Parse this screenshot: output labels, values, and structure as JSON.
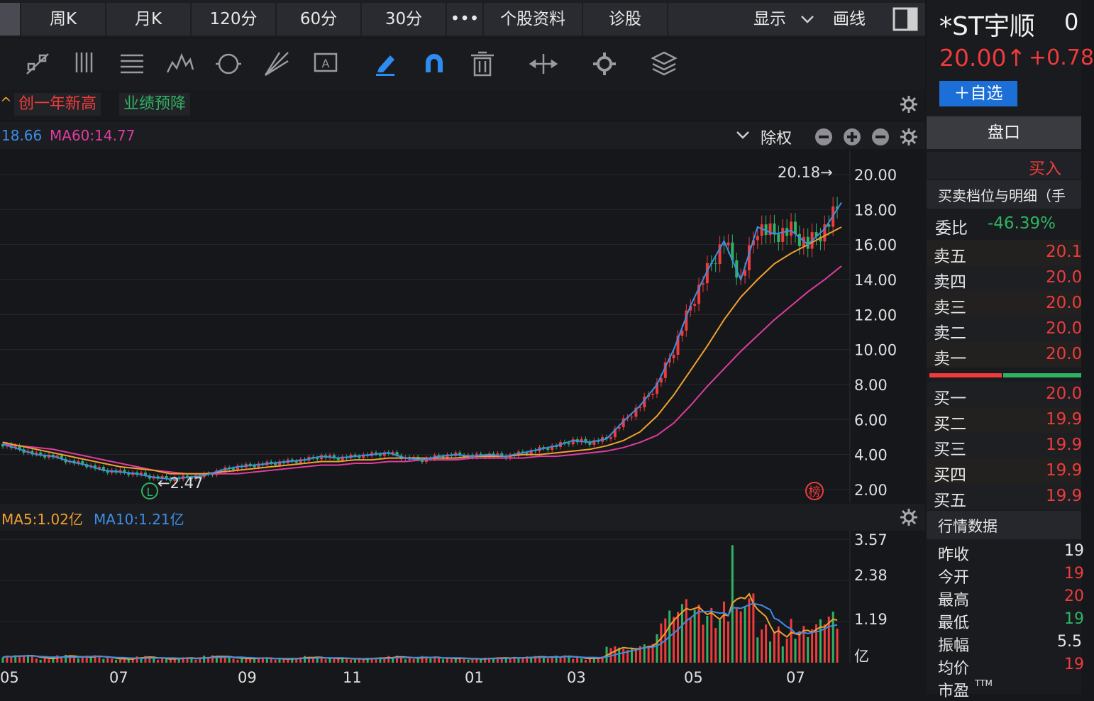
{
  "tabs": [
    {
      "label": ""
    },
    {
      "label": "周K"
    },
    {
      "label": "月K"
    },
    {
      "label": "120分"
    },
    {
      "label": "60分"
    },
    {
      "label": "30分"
    },
    {
      "label": "•••"
    },
    {
      "label": "个股资料"
    },
    {
      "label": "诊股"
    }
  ],
  "tabbar_right": {
    "display_label": "显示",
    "draw_label": "画线"
  },
  "tags": {
    "left_marker": "^",
    "new_high": "创一年新高",
    "profit_warning": "业绩预降"
  },
  "ma_legend": {
    "ma_partial": "18.66",
    "ma60": "MA60:14.77",
    "adjust": "除权"
  },
  "vol_legend": {
    "ma5": "MA5:1.02亿",
    "ma10": "MA10:1.21亿"
  },
  "price_axis": [
    "20.00",
    "18.00",
    "16.00",
    "14.00",
    "12.00",
    "10.00",
    "8.00",
    "6.00",
    "4.00",
    "2.00"
  ],
  "vol_axis": [
    "3.57",
    "2.38",
    "1.19",
    "亿"
  ],
  "x_axis": [
    "05",
    "07",
    "09",
    "11",
    "01",
    "03",
    "05",
    "07"
  ],
  "annotations": {
    "high": "20.18→",
    "low": "←2.47",
    "low_marker": "L",
    "rank_marker": "榜"
  },
  "stock": {
    "name": "*ST宇顺",
    "code_partial": "0",
    "price": "20.00↑",
    "change": "+0.78",
    "add_watch": "＋自选"
  },
  "panel": {
    "pankou": "盘口",
    "buy_tab": "买入",
    "section_title": "买卖档位与明细（手",
    "weibi_label": "委比",
    "weibi_value": "-46.39%",
    "asks": [
      {
        "label": "卖五",
        "price": "20.1"
      },
      {
        "label": "卖四",
        "price": "20.0"
      },
      {
        "label": "卖三",
        "price": "20.0"
      },
      {
        "label": "卖二",
        "price": "20.0"
      },
      {
        "label": "卖一",
        "price": "20.0"
      }
    ],
    "bids": [
      {
        "label": "买一",
        "price": "20.0"
      },
      {
        "label": "买二",
        "price": "19.9"
      },
      {
        "label": "买三",
        "price": "19.9"
      },
      {
        "label": "买四",
        "price": "19.9"
      },
      {
        "label": "买五",
        "price": "19.9"
      }
    ],
    "market_title": "行情数据",
    "market": [
      {
        "label": "昨收",
        "value": "19",
        "color": "#e6e6e6"
      },
      {
        "label": "今开",
        "value": "19",
        "color": "#ee3b3b"
      },
      {
        "label": "最高",
        "value": "20",
        "color": "#ee3b3b"
      },
      {
        "label": "最低",
        "value": "19",
        "color": "#2fb363"
      },
      {
        "label": "振幅",
        "value": "5.5",
        "color": "#e6e6e6"
      },
      {
        "label": "均价",
        "value": "19",
        "color": "#ee3b3b"
      },
      {
        "label": "市盈",
        "value": "TTM",
        "color": "#e6e6e6"
      }
    ]
  },
  "colors": {
    "up": "#ee3b3b",
    "down": "#2fb363",
    "ma5": "#3d8ee6",
    "ma10": "#f0a030",
    "ma60": "#e03ca0",
    "accent": "#1d6fd8"
  },
  "chart_data": {
    "type": "line",
    "title": "",
    "x_ticks": [
      "05",
      "07",
      "09",
      "11",
      "01",
      "03",
      "05",
      "07"
    ],
    "ylim": [
      2.0,
      20.0
    ],
    "series": [
      {
        "name": "",
        "values": [
          4.6,
          4.3,
          4.0,
          3.9,
          3.6,
          3.4,
          3.1,
          3.0,
          2.9,
          2.7,
          2.6,
          2.7,
          2.8,
          3.1,
          3.3,
          3.4,
          3.5,
          3.6,
          3.7,
          3.9,
          3.8,
          3.9,
          4.0,
          4.1,
          3.8,
          3.7,
          3.9,
          4.0,
          3.9,
          4.0,
          3.9,
          4.1,
          4.3,
          4.5,
          4.8,
          4.7,
          4.9,
          5.9,
          6.8,
          8.0,
          10.0,
          12.5,
          14.5,
          16.2,
          14.0,
          17.0,
          16.6,
          16.8,
          16.0,
          16.9,
          18.4
        ]
      },
      {
        "name": "",
        "values": [
          4.7,
          4.5,
          4.3,
          4.1,
          3.9,
          3.7,
          3.5,
          3.3,
          3.2,
          3.1,
          2.9,
          2.9,
          2.9,
          3.0,
          3.1,
          3.2,
          3.3,
          3.4,
          3.5,
          3.6,
          3.6,
          3.7,
          3.7,
          3.8,
          3.8,
          3.8,
          3.8,
          3.8,
          3.9,
          3.9,
          3.9,
          4.0,
          4.0,
          4.1,
          4.2,
          4.3,
          4.5,
          4.8,
          5.3,
          6.2,
          7.4,
          8.8,
          10.2,
          11.7,
          13.0,
          14.0,
          14.9,
          15.5,
          16.0,
          16.5,
          17.0
        ]
      },
      {
        "name": "",
        "values": [
          4.6,
          4.5,
          4.4,
          4.3,
          4.1,
          3.9,
          3.7,
          3.5,
          3.3,
          3.1,
          3.0,
          2.9,
          2.9,
          2.9,
          2.9,
          3.0,
          3.1,
          3.2,
          3.3,
          3.4,
          3.4,
          3.5,
          3.5,
          3.6,
          3.6,
          3.7,
          3.7,
          3.7,
          3.8,
          3.8,
          3.8,
          3.8,
          3.9,
          3.9,
          4.0,
          4.1,
          4.2,
          4.4,
          4.7,
          5.1,
          5.8,
          6.8,
          7.9,
          8.9,
          9.9,
          10.8,
          11.7,
          12.5,
          13.3,
          14.0,
          14.77
        ]
      }
    ]
  }
}
